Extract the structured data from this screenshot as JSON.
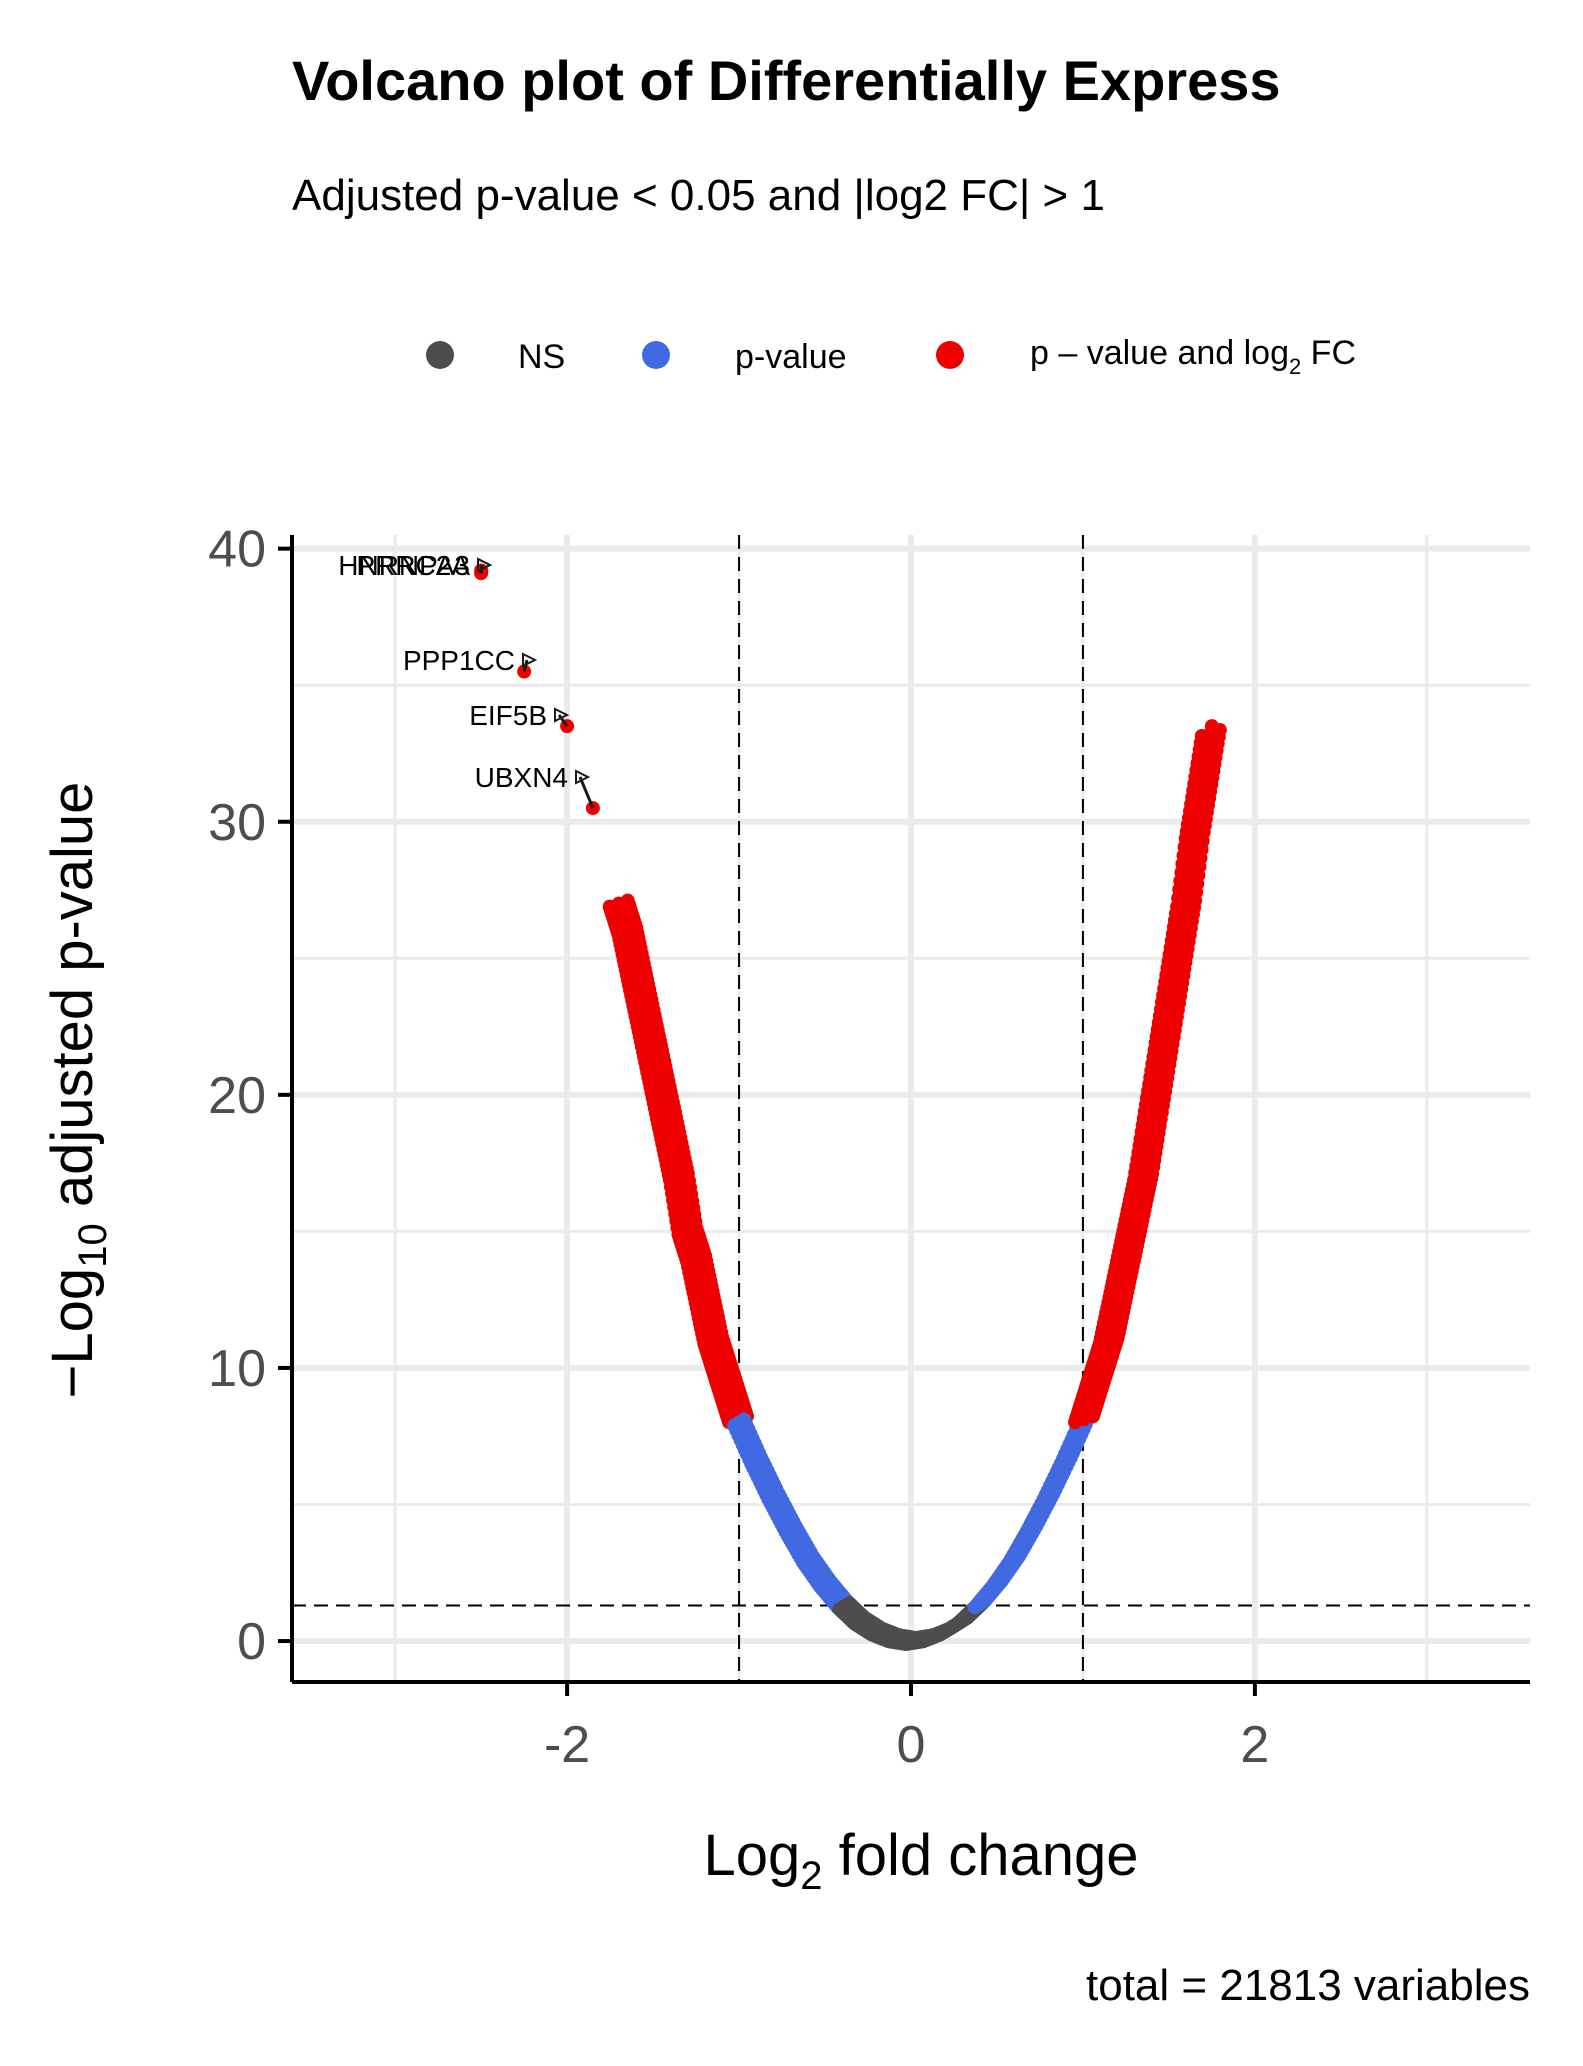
{
  "chart_data": {
    "type": "scatter",
    "title": "Volcano plot of Differentially Express",
    "subtitle": "Adjusted p-value < 0.05 and |log2 FC| > 1",
    "xlabel_main": "Log",
    "xlabel_sub": "2",
    "xlabel_rest": " fold change",
    "ylabel_prefix": "−Log",
    "ylabel_sub": "10",
    "ylabel_rest": " adjusted p-value",
    "caption": "total = 21813 variables",
    "xlim": [
      -3.6,
      3.6
    ],
    "ylim": [
      -1.5,
      40.5
    ],
    "x_ticks": [
      -2,
      0,
      2
    ],
    "x_tick_labels": [
      "-2",
      "0",
      "2"
    ],
    "y_ticks": [
      0,
      10,
      20,
      30,
      40
    ],
    "y_tick_labels": [
      "0",
      "10",
      "20",
      "30",
      "40"
    ],
    "fc_cutoff": 1,
    "p_cutoff_log": 1.3,
    "grid": true,
    "legend_position": "top",
    "legend": [
      {
        "key": "ns",
        "label": "NS",
        "color": "#4d4d4d"
      },
      {
        "key": "p",
        "label": "p-value",
        "color": "#4169e1"
      },
      {
        "key": "fc",
        "label_main": "p – value and log",
        "label_sub": "2",
        "label_rest": " FC",
        "color": "#ee0000"
      }
    ],
    "curve_points": [
      {
        "x": -1.7,
        "y": 27.0
      },
      {
        "x": -1.65,
        "y": 26.0
      },
      {
        "x": -1.6,
        "y": 24.5
      },
      {
        "x": -1.55,
        "y": 23.0
      },
      {
        "x": -1.5,
        "y": 21.5
      },
      {
        "x": -1.45,
        "y": 20.0
      },
      {
        "x": -1.4,
        "y": 18.5
      },
      {
        "x": -1.35,
        "y": 17.0
      },
      {
        "x": -1.3,
        "y": 15.0
      },
      {
        "x": -1.25,
        "y": 14.0
      },
      {
        "x": -1.2,
        "y": 12.5
      },
      {
        "x": -1.15,
        "y": 11.0
      },
      {
        "x": -1.1,
        "y": 10.0
      },
      {
        "x": -1.05,
        "y": 9.0
      },
      {
        "x": -1.0,
        "y": 8.0
      },
      {
        "x": -0.9,
        "y": 6.6
      },
      {
        "x": -0.8,
        "y": 5.3
      },
      {
        "x": -0.7,
        "y": 4.1
      },
      {
        "x": -0.6,
        "y": 3.0
      },
      {
        "x": -0.5,
        "y": 2.1
      },
      {
        "x": -0.4,
        "y": 1.35
      },
      {
        "x": -0.3,
        "y": 0.75
      },
      {
        "x": -0.2,
        "y": 0.35
      },
      {
        "x": -0.1,
        "y": 0.1
      },
      {
        "x": 0.0,
        "y": 0.0
      },
      {
        "x": 0.1,
        "y": 0.1
      },
      {
        "x": 0.2,
        "y": 0.35
      },
      {
        "x": 0.3,
        "y": 0.75
      },
      {
        "x": 0.4,
        "y": 1.35
      },
      {
        "x": 0.5,
        "y": 2.1
      },
      {
        "x": 0.6,
        "y": 3.0
      },
      {
        "x": 0.7,
        "y": 4.1
      },
      {
        "x": 0.8,
        "y": 5.3
      },
      {
        "x": 0.9,
        "y": 6.6
      },
      {
        "x": 1.0,
        "y": 8.0
      },
      {
        "x": 1.05,
        "y": 9.0
      },
      {
        "x": 1.1,
        "y": 10.0
      },
      {
        "x": 1.15,
        "y": 11.0
      },
      {
        "x": 1.2,
        "y": 12.5
      },
      {
        "x": 1.25,
        "y": 14.0
      },
      {
        "x": 1.3,
        "y": 15.5
      },
      {
        "x": 1.35,
        "y": 17.0
      },
      {
        "x": 1.4,
        "y": 19.0
      },
      {
        "x": 1.45,
        "y": 21.0
      },
      {
        "x": 1.5,
        "y": 23.0
      },
      {
        "x": 1.55,
        "y": 25.0
      },
      {
        "x": 1.6,
        "y": 27.0
      },
      {
        "x": 1.65,
        "y": 29.5
      },
      {
        "x": 1.7,
        "y": 31.5
      },
      {
        "x": 1.75,
        "y": 33.5
      }
    ],
    "labeled_points": [
      {
        "gene": "HNRNPA3",
        "x": -2.5,
        "y": 39.2
      },
      {
        "gene": "PRRC2A",
        "x": -2.5,
        "y": 39.1
      },
      {
        "gene": "PPP1CC",
        "x": -2.25,
        "y": 35.5
      },
      {
        "gene": "EIF5B",
        "x": -2.0,
        "y": 33.5
      },
      {
        "gene": "UBXN4",
        "x": -1.85,
        "y": 30.5
      }
    ]
  }
}
